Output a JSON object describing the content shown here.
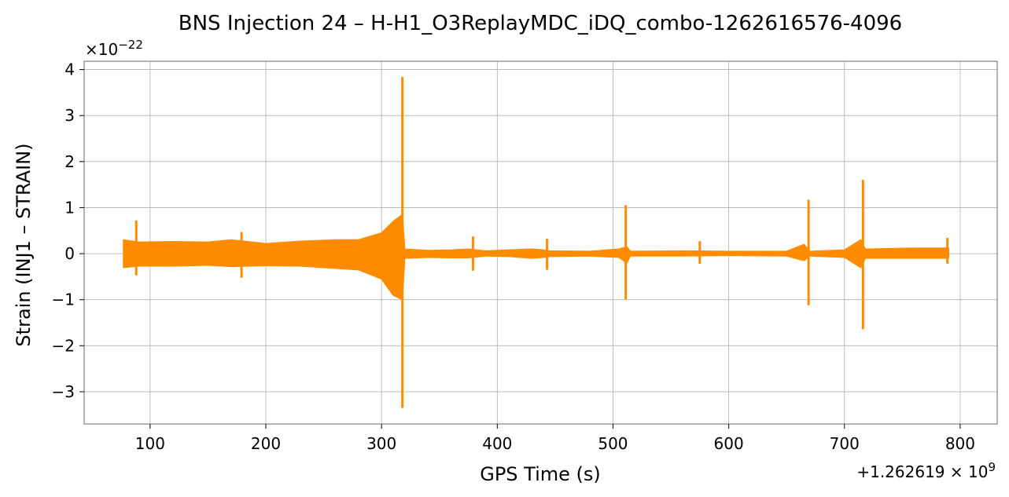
{
  "chart_data": {
    "type": "line",
    "title": "BNS Injection 24 – H-H1_O3ReplayMDC_iDQ_combo-1262616576-4096",
    "xlabel": "GPS Time (s)",
    "ylabel": "Strain (INJ1 – STRAIN)",
    "x_offset_label": "+1.262619 × 10",
    "x_offset_exponent": "9",
    "y_scale_label": "×10",
    "y_scale_exponent": "−22",
    "xlim": [
      43,
      832
    ],
    "ylim": [
      -3.7,
      4.18
    ],
    "x_ticks": [
      100,
      200,
      300,
      400,
      500,
      600,
      700,
      800
    ],
    "x_tick_labels": [
      "100",
      "200",
      "300",
      "400",
      "500",
      "600",
      "700",
      "800"
    ],
    "y_ticks": [
      -3,
      -2,
      -1,
      0,
      1,
      2,
      3,
      4
    ],
    "y_tick_labels": [
      "−3",
      "−2",
      "−1",
      "0",
      "1",
      "2",
      "3",
      "4"
    ],
    "grid": true,
    "series": [
      {
        "color": "#ff8c00",
        "envelope": [
          [
            77,
            0.3,
            -0.3
          ],
          [
            90,
            0.25,
            -0.27
          ],
          [
            120,
            0.26,
            -0.27
          ],
          [
            150,
            0.25,
            -0.25
          ],
          [
            170,
            0.3,
            -0.28
          ],
          [
            200,
            0.22,
            -0.26
          ],
          [
            230,
            0.27,
            -0.27
          ],
          [
            260,
            0.3,
            -0.32
          ],
          [
            280,
            0.3,
            -0.35
          ],
          [
            300,
            0.45,
            -0.55
          ],
          [
            310,
            0.7,
            -0.9
          ],
          [
            318,
            0.85,
            -1.0
          ],
          [
            320,
            0.1,
            -0.1
          ],
          [
            340,
            0.07,
            -0.08
          ],
          [
            360,
            0.08,
            -0.09
          ],
          [
            375,
            0.1,
            -0.09
          ],
          [
            390,
            0.06,
            -0.05
          ],
          [
            410,
            0.08,
            -0.06
          ],
          [
            430,
            0.1,
            -0.1
          ],
          [
            440,
            0.08,
            -0.08
          ],
          [
            445,
            0.06,
            -0.06
          ],
          [
            480,
            0.05,
            -0.05
          ],
          [
            505,
            0.1,
            -0.08
          ],
          [
            512,
            0.15,
            -0.2
          ],
          [
            515,
            0.05,
            -0.05
          ],
          [
            560,
            0.06,
            -0.05
          ],
          [
            600,
            0.05,
            -0.04
          ],
          [
            650,
            0.05,
            -0.05
          ],
          [
            665,
            0.2,
            -0.15
          ],
          [
            670,
            0.05,
            -0.05
          ],
          [
            700,
            0.08,
            -0.08
          ],
          [
            714,
            0.3,
            -0.3
          ],
          [
            718,
            0.1,
            -0.1
          ],
          [
            760,
            0.12,
            -0.1
          ],
          [
            790,
            0.12,
            -0.1
          ]
        ],
        "spikes": [
          [
            88,
            0.7,
            -0.45
          ],
          [
            179,
            0.45,
            -0.5
          ],
          [
            318,
            3.82,
            -3.33
          ],
          [
            379,
            0.35,
            -0.35
          ],
          [
            443,
            0.3,
            -0.33
          ],
          [
            511,
            1.03,
            -0.97
          ],
          [
            575,
            0.25,
            -0.2
          ],
          [
            669,
            1.15,
            -1.1
          ],
          [
            716,
            1.58,
            -1.62
          ],
          [
            789,
            0.32,
            -0.2
          ]
        ]
      }
    ]
  }
}
